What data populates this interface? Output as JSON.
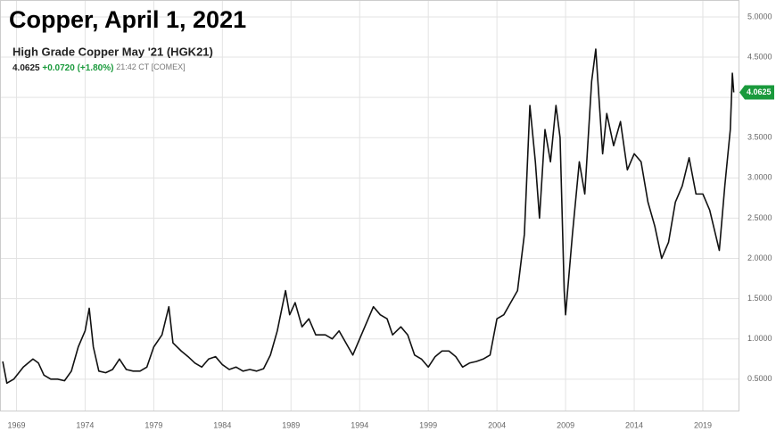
{
  "chart_data": {
    "type": "line",
    "title": "Copper, April 1, 2021",
    "subtitle": "High Grade Copper May '21 (HGK21)",
    "quote": {
      "price": "4.0625",
      "change": "+0.0720 (+1.80%)",
      "time": "21:42 CT [COMEX]"
    },
    "last_price_label": "4.0625",
    "color": "#111111",
    "label_color": "#1a9a3c",
    "grid": true,
    "xlim": [
      1967.8,
      2021.6
    ],
    "xticks": [
      1969,
      1974,
      1979,
      1984,
      1989,
      1994,
      1999,
      2004,
      2009,
      2014,
      2019
    ],
    "ylim": [
      0.11,
      5.21
    ],
    "yticks": [
      {
        "value": 0.5,
        "label": "0.5000"
      },
      {
        "value": 1.0,
        "label": "1.0000"
      },
      {
        "value": 1.5,
        "label": "1.5000"
      },
      {
        "value": 2.0,
        "label": "2.0000"
      },
      {
        "value": 2.5,
        "label": "2.5000"
      },
      {
        "value": 3.0,
        "label": "3.0000"
      },
      {
        "value": 3.5,
        "label": "3.5000"
      },
      {
        "value": 4.0,
        "label": "4.0000"
      },
      {
        "value": 4.5,
        "label": "4.5000"
      },
      {
        "value": 5.0,
        "label": "5.0000"
      }
    ],
    "x": [
      1968.0,
      1968.3,
      1968.8,
      1969.5,
      1970.2,
      1970.6,
      1971.0,
      1971.5,
      1972.0,
      1972.5,
      1973.0,
      1973.5,
      1974.0,
      1974.3,
      1974.6,
      1975.0,
      1975.5,
      1976.0,
      1976.5,
      1977.0,
      1977.5,
      1978.0,
      1978.5,
      1979.0,
      1979.6,
      1980.1,
      1980.4,
      1981.0,
      1981.5,
      1982.0,
      1982.5,
      1983.0,
      1983.5,
      1984.0,
      1984.5,
      1985.0,
      1985.5,
      1986.0,
      1986.5,
      1987.0,
      1987.5,
      1988.0,
      1988.6,
      1988.9,
      1989.3,
      1989.8,
      1990.3,
      1990.8,
      1991.5,
      1992.0,
      1992.5,
      1993.0,
      1993.5,
      1994.0,
      1994.5,
      1995.0,
      1995.5,
      1996.0,
      1996.4,
      1997.0,
      1997.5,
      1998.0,
      1998.5,
      1999.0,
      1999.5,
      2000.0,
      2000.5,
      2001.0,
      2001.5,
      2002.0,
      2002.5,
      2003.0,
      2003.5,
      2004.0,
      2004.5,
      2005.0,
      2005.5,
      2006.0,
      2006.4,
      2006.8,
      2007.1,
      2007.5,
      2007.9,
      2008.3,
      2008.6,
      2008.9,
      2009.0,
      2009.5,
      2010.0,
      2010.4,
      2010.9,
      2011.2,
      2011.7,
      2012.0,
      2012.5,
      2013.0,
      2013.5,
      2014.0,
      2014.5,
      2015.0,
      2015.5,
      2016.0,
      2016.5,
      2017.0,
      2017.5,
      2018.0,
      2018.5,
      2019.0,
      2019.5,
      2020.2,
      2020.6,
      2021.0,
      2021.15,
      2021.25
    ],
    "values": [
      0.72,
      0.45,
      0.5,
      0.65,
      0.75,
      0.7,
      0.55,
      0.5,
      0.5,
      0.48,
      0.6,
      0.9,
      1.1,
      1.38,
      0.9,
      0.6,
      0.58,
      0.62,
      0.75,
      0.62,
      0.6,
      0.6,
      0.65,
      0.9,
      1.05,
      1.4,
      0.95,
      0.85,
      0.78,
      0.7,
      0.65,
      0.75,
      0.78,
      0.68,
      0.62,
      0.65,
      0.6,
      0.62,
      0.6,
      0.63,
      0.8,
      1.1,
      1.6,
      1.3,
      1.45,
      1.15,
      1.25,
      1.05,
      1.05,
      1.0,
      1.1,
      0.95,
      0.8,
      1.0,
      1.2,
      1.4,
      1.3,
      1.25,
      1.05,
      1.15,
      1.05,
      0.8,
      0.75,
      0.65,
      0.78,
      0.85,
      0.85,
      0.78,
      0.65,
      0.7,
      0.72,
      0.75,
      0.8,
      1.25,
      1.3,
      1.45,
      1.6,
      2.3,
      3.9,
      3.2,
      2.5,
      3.6,
      3.2,
      3.9,
      3.5,
      1.6,
      1.3,
      2.3,
      3.2,
      2.8,
      4.2,
      4.6,
      3.3,
      3.8,
      3.4,
      3.7,
      3.1,
      3.3,
      3.2,
      2.7,
      2.4,
      2.0,
      2.2,
      2.7,
      2.9,
      3.25,
      2.8,
      2.8,
      2.6,
      2.1,
      2.9,
      3.6,
      4.3,
      4.0625
    ]
  }
}
